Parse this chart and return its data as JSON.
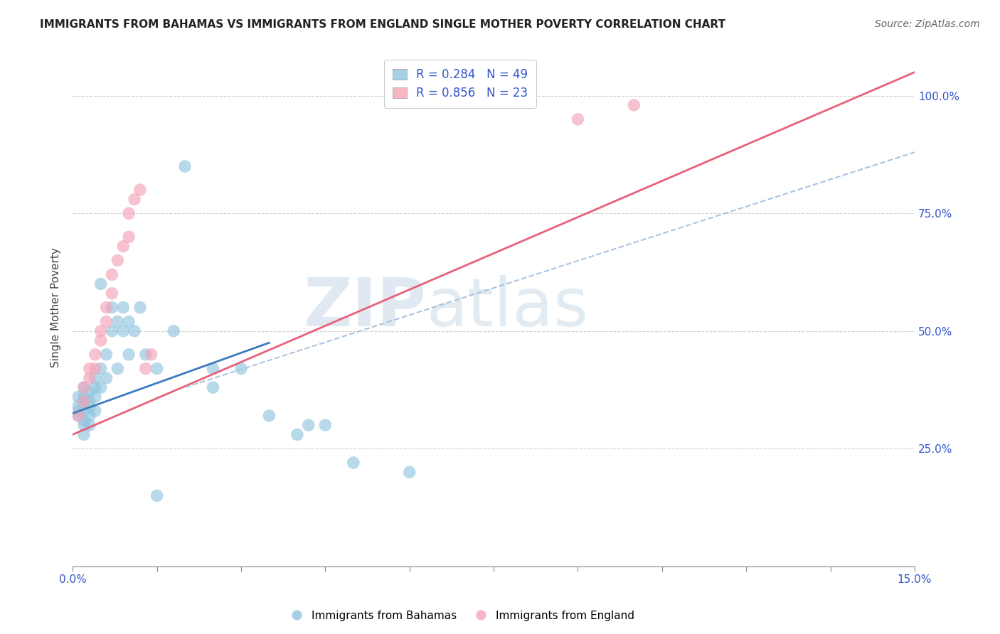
{
  "title": "IMMIGRANTS FROM BAHAMAS VS IMMIGRANTS FROM ENGLAND SINGLE MOTHER POVERTY CORRELATION CHART",
  "source": "Source: ZipAtlas.com",
  "ylabel": "Single Mother Poverty",
  "legend_blue_r": "R = 0.284",
  "legend_blue_n": "N = 49",
  "legend_pink_r": "R = 0.856",
  "legend_pink_n": "N = 23",
  "blue_color": "#92c5de",
  "pink_color": "#f4a4b8",
  "blue_line_color": "#3a7bbf",
  "pink_line_color": "#e8607a",
  "gray_line_color": "#aac4dd",
  "blue_points": [
    [
      0.001,
      0.36
    ],
    [
      0.001,
      0.34
    ],
    [
      0.001,
      0.33
    ],
    [
      0.001,
      0.32
    ],
    [
      0.002,
      0.38
    ],
    [
      0.002,
      0.36
    ],
    [
      0.002,
      0.35
    ],
    [
      0.002,
      0.33
    ],
    [
      0.002,
      0.31
    ],
    [
      0.002,
      0.3
    ],
    [
      0.002,
      0.28
    ],
    [
      0.003,
      0.37
    ],
    [
      0.003,
      0.35
    ],
    [
      0.003,
      0.34
    ],
    [
      0.003,
      0.32
    ],
    [
      0.003,
      0.3
    ],
    [
      0.004,
      0.4
    ],
    [
      0.004,
      0.38
    ],
    [
      0.004,
      0.36
    ],
    [
      0.004,
      0.33
    ],
    [
      0.005,
      0.42
    ],
    [
      0.005,
      0.38
    ],
    [
      0.005,
      0.6
    ],
    [
      0.006,
      0.45
    ],
    [
      0.006,
      0.4
    ],
    [
      0.007,
      0.55
    ],
    [
      0.007,
      0.5
    ],
    [
      0.008,
      0.52
    ],
    [
      0.008,
      0.42
    ],
    [
      0.009,
      0.55
    ],
    [
      0.009,
      0.5
    ],
    [
      0.01,
      0.52
    ],
    [
      0.01,
      0.45
    ],
    [
      0.011,
      0.5
    ],
    [
      0.012,
      0.55
    ],
    [
      0.013,
      0.45
    ],
    [
      0.015,
      0.42
    ],
    [
      0.018,
      0.5
    ],
    [
      0.02,
      0.85
    ],
    [
      0.025,
      0.42
    ],
    [
      0.025,
      0.38
    ],
    [
      0.03,
      0.42
    ],
    [
      0.035,
      0.32
    ],
    [
      0.04,
      0.28
    ],
    [
      0.042,
      0.3
    ],
    [
      0.045,
      0.3
    ],
    [
      0.05,
      0.22
    ],
    [
      0.06,
      0.2
    ],
    [
      0.015,
      0.15
    ]
  ],
  "pink_points": [
    [
      0.001,
      0.32
    ],
    [
      0.002,
      0.35
    ],
    [
      0.002,
      0.38
    ],
    [
      0.003,
      0.4
    ],
    [
      0.003,
      0.42
    ],
    [
      0.004,
      0.42
    ],
    [
      0.004,
      0.45
    ],
    [
      0.005,
      0.48
    ],
    [
      0.005,
      0.5
    ],
    [
      0.006,
      0.52
    ],
    [
      0.006,
      0.55
    ],
    [
      0.007,
      0.58
    ],
    [
      0.007,
      0.62
    ],
    [
      0.008,
      0.65
    ],
    [
      0.009,
      0.68
    ],
    [
      0.01,
      0.7
    ],
    [
      0.01,
      0.75
    ],
    [
      0.011,
      0.78
    ],
    [
      0.012,
      0.8
    ],
    [
      0.013,
      0.42
    ],
    [
      0.014,
      0.45
    ],
    [
      0.09,
      0.95
    ],
    [
      0.1,
      0.98
    ]
  ],
  "xlim": [
    0.0,
    0.15
  ],
  "ylim": [
    0.0,
    1.1
  ],
  "watermark_zip": "ZIP",
  "watermark_atlas": "atlas",
  "figsize": [
    14.06,
    8.92
  ],
  "dpi": 100
}
